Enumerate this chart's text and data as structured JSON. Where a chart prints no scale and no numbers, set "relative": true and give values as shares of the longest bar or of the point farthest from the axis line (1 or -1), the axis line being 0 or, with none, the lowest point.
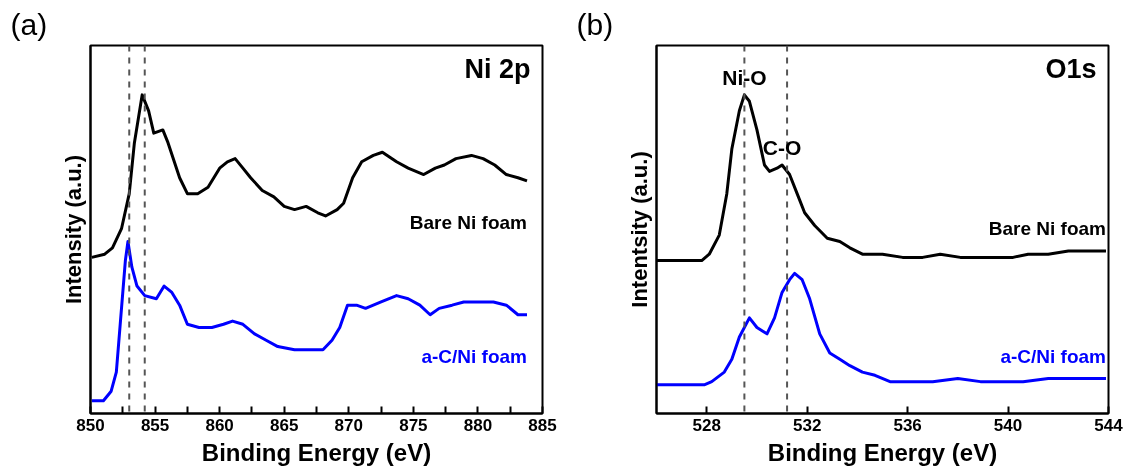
{
  "chart_data": [
    {
      "type": "line",
      "title": "(a)",
      "xlabel": "Binding Energy (eV)",
      "ylabel": "Intensity (a.u.)",
      "relative": true,
      "legend": false,
      "grid": false,
      "xlim": [
        850,
        885
      ],
      "xticks": [
        850,
        {
          "value": 852.5,
          "label": null
        },
        855,
        {
          "value": 857.5,
          "label": null
        },
        860,
        {
          "value": 862.5,
          "label": null
        },
        865,
        {
          "value": 867.5,
          "label": null
        },
        870,
        {
          "value": 872.5,
          "label": null
        },
        875,
        {
          "value": 877.5,
          "label": null
        },
        880,
        {
          "value": 882.5,
          "label": null
        },
        885
      ],
      "annotations": [
        "Ni 2p"
      ],
      "ref_lines": [
        {
          "axis": "x",
          "value": 853.0,
          "color": "#555555",
          "line_style": "dashed"
        },
        {
          "axis": "x",
          "value": 854.2,
          "color": "#555555",
          "line_style": "dashed"
        }
      ],
      "series": [
        {
          "name": "Bare Ni foam",
          "color": "#000000",
          "x": [
            850.1,
            851.1,
            851.7,
            852.4,
            853.0,
            853.4,
            854.0,
            854.5,
            854.9,
            855.6,
            856.0,
            856.9,
            857.5,
            858.3,
            859.1,
            860.0,
            860.6,
            861.2,
            861.8,
            862.4,
            863.3,
            864.2,
            865.0,
            865.8,
            866.7,
            867.6,
            868.2,
            869.1,
            869.6,
            870.3,
            871.0,
            871.9,
            872.6,
            873.7,
            874.6,
            875.8,
            876.7,
            877.4,
            878.3,
            879.5,
            880.4,
            881.3,
            882.2,
            883.1,
            883.8
          ],
          "values": [
            0.49,
            0.5,
            0.52,
            0.58,
            0.69,
            0.85,
            1.0,
            0.95,
            0.88,
            0.89,
            0.85,
            0.74,
            0.69,
            0.69,
            0.71,
            0.77,
            0.79,
            0.8,
            0.77,
            0.74,
            0.7,
            0.68,
            0.65,
            0.64,
            0.65,
            0.63,
            0.62,
            0.64,
            0.66,
            0.74,
            0.79,
            0.81,
            0.82,
            0.79,
            0.77,
            0.75,
            0.77,
            0.78,
            0.8,
            0.81,
            0.8,
            0.78,
            0.75,
            0.74,
            0.73
          ]
        },
        {
          "name": "a-C/Ni foam",
          "color": "#0000ff",
          "x": [
            850.1,
            851.0,
            851.6,
            852.0,
            852.3,
            852.7,
            852.9,
            853.2,
            853.6,
            854.2,
            855.1,
            855.7,
            856.3,
            856.9,
            857.5,
            858.4,
            859.4,
            860.3,
            861.0,
            861.8,
            862.7,
            863.6,
            864.5,
            865.8,
            866.7,
            868.0,
            868.7,
            869.3,
            869.9,
            870.6,
            871.3,
            872.5,
            873.7,
            874.6,
            875.5,
            876.3,
            877.0,
            878.0,
            878.9,
            879.8,
            881.2,
            882.2,
            883.1,
            883.8
          ],
          "values": [
            0.04,
            0.04,
            0.07,
            0.13,
            0.28,
            0.48,
            0.54,
            0.46,
            0.4,
            0.37,
            0.36,
            0.4,
            0.38,
            0.34,
            0.28,
            0.27,
            0.27,
            0.28,
            0.29,
            0.28,
            0.25,
            0.23,
            0.21,
            0.2,
            0.2,
            0.2,
            0.23,
            0.27,
            0.34,
            0.34,
            0.33,
            0.35,
            0.37,
            0.36,
            0.34,
            0.31,
            0.33,
            0.34,
            0.35,
            0.35,
            0.35,
            0.34,
            0.31,
            0.31
          ]
        }
      ]
    },
    {
      "type": "line",
      "title": "(b)",
      "xlabel": "Binding Energy (eV)",
      "ylabel": "Intentsity (a.u.)",
      "relative": true,
      "legend": false,
      "grid": false,
      "xlim": [
        526,
        544
      ],
      "xticks": [
        528,
        532,
        536,
        540,
        544
      ],
      "annotations": [
        "O1s",
        {
          "text": "Ni-O",
          "x": 529.5,
          "y": 1.0
        },
        {
          "text": "C-O",
          "x": 531.0,
          "y": 0.78
        }
      ],
      "ref_lines": [
        {
          "axis": "x",
          "value": 529.5,
          "color": "#555555",
          "line_style": "dashed"
        },
        {
          "axis": "x",
          "value": 531.2,
          "color": "#555555",
          "line_style": "dashed"
        }
      ],
      "series": [
        {
          "name": "Bare Ni foam",
          "color": "#000000",
          "x": [
            526.0,
            526.8,
            527.8,
            528.1,
            528.5,
            528.8,
            529.0,
            529.3,
            529.5,
            529.7,
            530.0,
            530.3,
            530.5,
            530.8,
            531.0,
            531.3,
            531.6,
            531.9,
            532.3,
            532.8,
            533.3,
            533.7,
            534.2,
            535.0,
            535.8,
            536.6,
            537.3,
            538.1,
            538.9,
            539.4,
            540.2,
            540.8,
            541.6,
            542.4,
            543.1,
            543.9
          ],
          "values": [
            0.48,
            0.48,
            0.48,
            0.5,
            0.56,
            0.69,
            0.83,
            0.95,
            1.0,
            0.98,
            0.89,
            0.78,
            0.76,
            0.77,
            0.78,
            0.75,
            0.69,
            0.63,
            0.59,
            0.55,
            0.54,
            0.52,
            0.5,
            0.5,
            0.49,
            0.49,
            0.5,
            0.49,
            0.49,
            0.49,
            0.49,
            0.5,
            0.5,
            0.51,
            0.51,
            0.51
          ]
        },
        {
          "name": "a-C/Ni foam",
          "color": "#0000ff",
          "x": [
            526.0,
            526.8,
            527.9,
            528.2,
            528.7,
            529.0,
            529.3,
            529.7,
            530.0,
            530.4,
            530.7,
            531.0,
            531.3,
            531.5,
            531.8,
            532.1,
            532.5,
            532.9,
            533.3,
            533.7,
            534.2,
            534.7,
            535.3,
            536.2,
            537.0,
            538.0,
            538.9,
            539.7,
            540.6,
            541.6,
            542.5,
            543.9
          ],
          "values": [
            0.09,
            0.09,
            0.09,
            0.1,
            0.13,
            0.17,
            0.24,
            0.3,
            0.27,
            0.25,
            0.3,
            0.38,
            0.42,
            0.44,
            0.42,
            0.36,
            0.25,
            0.19,
            0.17,
            0.15,
            0.13,
            0.12,
            0.1,
            0.1,
            0.1,
            0.11,
            0.1,
            0.1,
            0.1,
            0.11,
            0.11,
            0.11
          ]
        }
      ]
    }
  ]
}
